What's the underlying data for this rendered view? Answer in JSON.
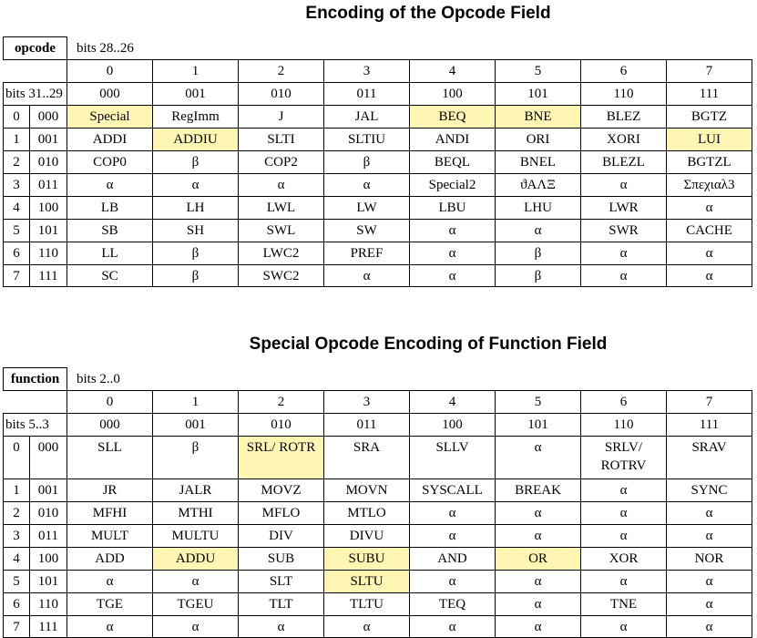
{
  "opcode_section": {
    "title": "Encoding of the Opcode Field",
    "corner_label": "opcode",
    "col_bits_label": "bits 28..26",
    "row_bits_label": "bits 31..29",
    "col_indices": [
      "0",
      "1",
      "2",
      "3",
      "4",
      "5",
      "6",
      "7"
    ],
    "col_binaries": [
      "000",
      "001",
      "010",
      "011",
      "100",
      "101",
      "110",
      "111"
    ],
    "rows": [
      {
        "index": "0",
        "binary": "000",
        "cells": [
          "Special",
          "RegImm",
          "J",
          "JAL",
          "BEQ",
          "BNE",
          "BLEZ",
          "BGTZ"
        ],
        "highlight": [
          true,
          false,
          false,
          false,
          true,
          true,
          false,
          false
        ]
      },
      {
        "index": "1",
        "binary": "001",
        "cells": [
          "ADDI",
          "ADDIU",
          "SLTI",
          "SLTIU",
          "ANDI",
          "ORI",
          "XORI",
          "LUI"
        ],
        "highlight": [
          false,
          true,
          false,
          false,
          false,
          false,
          false,
          true
        ]
      },
      {
        "index": "2",
        "binary": "010",
        "cells": [
          "COP0",
          "β",
          "COP2",
          "β",
          "BEQL",
          "BNEL",
          "BLEZL",
          "BGTZL"
        ],
        "highlight": [
          false,
          false,
          false,
          false,
          false,
          false,
          false,
          false
        ]
      },
      {
        "index": "3",
        "binary": "011",
        "cells": [
          "α",
          "α",
          "α",
          "α",
          "Special2",
          "ϑΑΛΞ",
          "α",
          "Σπεχιαλ3"
        ],
        "highlight": [
          false,
          false,
          false,
          false,
          false,
          false,
          false,
          false
        ]
      },
      {
        "index": "4",
        "binary": "100",
        "cells": [
          "LB",
          "LH",
          "LWL",
          "LW",
          "LBU",
          "LHU",
          "LWR",
          "α"
        ],
        "highlight": [
          false,
          false,
          false,
          false,
          false,
          false,
          false,
          false
        ]
      },
      {
        "index": "5",
        "binary": "101",
        "cells": [
          "SB",
          "SH",
          "SWL",
          "SW",
          "α",
          "α",
          "SWR",
          "CACHE"
        ],
        "highlight": [
          false,
          false,
          false,
          false,
          false,
          false,
          false,
          false
        ]
      },
      {
        "index": "6",
        "binary": "110",
        "cells": [
          "LL",
          "β",
          "LWC2",
          "PREF",
          "α",
          "β",
          "α",
          "α"
        ],
        "highlight": [
          false,
          false,
          false,
          false,
          false,
          false,
          false,
          false
        ]
      },
      {
        "index": "7",
        "binary": "111",
        "cells": [
          "SC",
          "β",
          "SWC2",
          "α",
          "α",
          "β",
          "α",
          "α"
        ],
        "highlight": [
          false,
          false,
          false,
          false,
          false,
          false,
          false,
          false
        ]
      }
    ]
  },
  "function_section": {
    "title": "Special Opcode Encoding of Function Field",
    "corner_label": "function",
    "col_bits_label": "bits 2..0",
    "row_bits_label": "bits 5..3",
    "col_indices": [
      "0",
      "1",
      "2",
      "3",
      "4",
      "5",
      "6",
      "7"
    ],
    "col_binaries": [
      "000",
      "001",
      "010",
      "011",
      "100",
      "101",
      "110",
      "111"
    ],
    "rows": [
      {
        "index": "0",
        "binary": "000",
        "cells": [
          "SLL",
          "β",
          "SRL/ ROTR",
          "SRA",
          "SLLV",
          "α",
          "SRLV/ ROTRV",
          "SRAV"
        ],
        "highlight": [
          false,
          false,
          true,
          false,
          false,
          false,
          false,
          false
        ]
      },
      {
        "index": "1",
        "binary": "001",
        "cells": [
          "JR",
          "JALR",
          "MOVZ",
          "MOVN",
          "SYSCALL",
          "BREAK",
          "α",
          "SYNC"
        ],
        "highlight": [
          false,
          false,
          false,
          false,
          false,
          false,
          false,
          false
        ]
      },
      {
        "index": "2",
        "binary": "010",
        "cells": [
          "MFHI",
          "MTHI",
          "MFLO",
          "MTLO",
          "α",
          "α",
          "α",
          "α"
        ],
        "highlight": [
          false,
          false,
          false,
          false,
          false,
          false,
          false,
          false
        ]
      },
      {
        "index": "3",
        "binary": "011",
        "cells": [
          "MULT",
          "MULTU",
          "DIV",
          "DIVU",
          "α",
          "α",
          "α",
          "α"
        ],
        "highlight": [
          false,
          false,
          false,
          false,
          false,
          false,
          false,
          false
        ]
      },
      {
        "index": "4",
        "binary": "100",
        "cells": [
          "ADD",
          "ADDU",
          "SUB",
          "SUBU",
          "AND",
          "OR",
          "XOR",
          "NOR"
        ],
        "highlight": [
          false,
          true,
          false,
          true,
          false,
          true,
          false,
          false
        ]
      },
      {
        "index": "5",
        "binary": "101",
        "cells": [
          "α",
          "α",
          "SLT",
          "SLTU",
          "α",
          "α",
          "α",
          "α"
        ],
        "highlight": [
          false,
          false,
          false,
          true,
          false,
          false,
          false,
          false
        ]
      },
      {
        "index": "6",
        "binary": "110",
        "cells": [
          "TGE",
          "TGEU",
          "TLT",
          "TLTU",
          "TEQ",
          "α",
          "TNE",
          "α"
        ],
        "highlight": [
          false,
          false,
          false,
          false,
          false,
          false,
          false,
          false
        ]
      },
      {
        "index": "7",
        "binary": "111",
        "cells": [
          "α",
          "α",
          "α",
          "α",
          "α",
          "α",
          "α",
          "α"
        ],
        "highlight": [
          false,
          false,
          false,
          false,
          false,
          false,
          false,
          false
        ]
      }
    ]
  }
}
